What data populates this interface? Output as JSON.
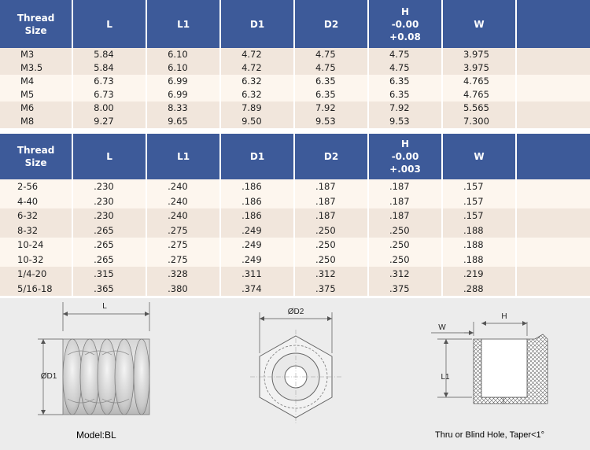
{
  "metric_table": {
    "headers": {
      "thread_size_line1": "Thread",
      "thread_size_line2": "Size",
      "L": "L",
      "L1": "L1",
      "D1": "D1",
      "D2": "D2",
      "H_line1": "H",
      "H_line2": "-0.00",
      "H_line3": "+0.08",
      "W": "W"
    },
    "rows": [
      {
        "size": "M3",
        "L": "5.84",
        "L1": "6.10",
        "D1": "4.72",
        "D2": "4.75",
        "H": "4.75",
        "W": "3.975"
      },
      {
        "size": "M3.5",
        "L": "5.84",
        "L1": "6.10",
        "D1": "4.72",
        "D2": "4.75",
        "H": "4.75",
        "W": "3.975"
      },
      {
        "size": "M4",
        "L": "6.73",
        "L1": "6.99",
        "D1": "6.32",
        "D2": "6.35",
        "H": "6.35",
        "W": "4.765"
      },
      {
        "size": "M5",
        "L": "6.73",
        "L1": "6.99",
        "D1": "6.32",
        "D2": "6.35",
        "H": "6.35",
        "W": "4.765"
      },
      {
        "size": "M6",
        "L": "8.00",
        "L1": "8.33",
        "D1": "7.89",
        "D2": "7.92",
        "H": "7.92",
        "W": "5.565"
      },
      {
        "size": "M8",
        "L": "9.27",
        "L1": "9.65",
        "D1": "9.50",
        "D2": "9.53",
        "H": "9.53",
        "W": "7.300"
      }
    ]
  },
  "inch_table": {
    "headers": {
      "thread_size_line1": "Thread",
      "thread_size_line2": "Size",
      "L": "L",
      "L1": "L1",
      "D1": "D1",
      "D2": "D2",
      "H_line1": "H",
      "H_line2": "-0.00",
      "H_line3": "+.003",
      "W": "W"
    },
    "rows": [
      {
        "size": "2-56",
        "L": ".230",
        "L1": ".240",
        "D1": ".186",
        "D2": ".187",
        "H": ".187",
        "W": ".157"
      },
      {
        "size": "4-40",
        "L": ".230",
        "L1": ".240",
        "D1": ".186",
        "D2": ".187",
        "H": ".187",
        "W": ".157"
      },
      {
        "size": "6-32",
        "L": ".230",
        "L1": ".240",
        "D1": ".186",
        "D2": ".187",
        "H": ".187",
        "W": ".157"
      },
      {
        "size": "8-32",
        "L": ".265",
        "L1": ".275",
        "D1": ".249",
        "D2": ".250",
        "H": ".250",
        "W": ".188"
      },
      {
        "size": "10-24",
        "L": ".265",
        "L1": ".275",
        "D1": ".249",
        "D2": ".250",
        "H": ".250",
        "W": ".188"
      },
      {
        "size": "10-32",
        "L": ".265",
        "L1": ".275",
        "D1": ".249",
        "D2": ".250",
        "H": ".250",
        "W": ".188"
      },
      {
        "size": "1/4-20",
        "L": ".315",
        "L1": ".328",
        "D1": ".311",
        "D2": ".312",
        "H": ".312",
        "W": ".219"
      },
      {
        "size": "5/16-18",
        "L": ".365",
        "L1": ".380",
        "D1": ".374",
        "D2": ".375",
        "H": ".375",
        "W": ".288"
      }
    ]
  },
  "drawings": {
    "side_view": {
      "dim_L": "L",
      "dim_D1": "ØD1",
      "caption": "Model:BL"
    },
    "top_view": {
      "dim_D2": "ØD2"
    },
    "hole_view": {
      "dim_W": "W",
      "dim_H": "H",
      "dim_L1": "L1",
      "caption": "Thru or Blind Hole, Taper<1°"
    }
  }
}
